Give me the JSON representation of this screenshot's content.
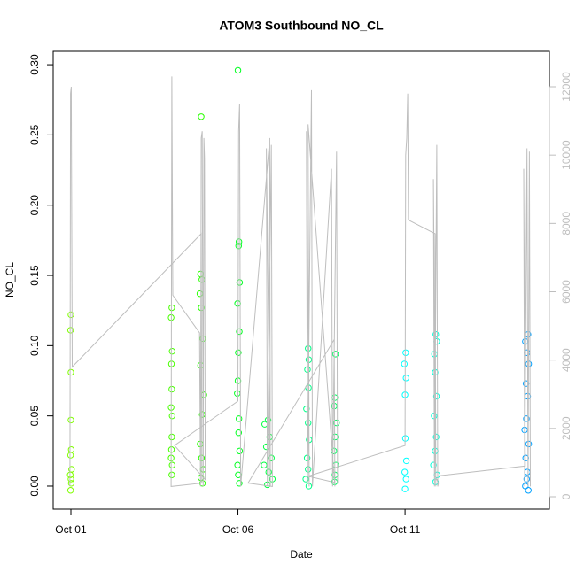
{
  "chart_data": {
    "type": "scatter",
    "title": "ATOM3 Southbound NO_CL",
    "xlabel": "Date",
    "ylabel": "NO_CL",
    "xlim": [
      0.47,
      15.32
    ],
    "xticks": [
      {
        "value": 1,
        "label": "Oct 01"
      },
      {
        "value": 6,
        "label": "Oct 06"
      },
      {
        "value": 11,
        "label": "Oct 11"
      }
    ],
    "ylim": [
      -0.0164,
      0.3095
    ],
    "yticks": [
      {
        "value": 0,
        "label": "0.00"
      },
      {
        "value": 0.05,
        "label": "0.05"
      },
      {
        "value": 0.1,
        "label": "0.10"
      },
      0.15,
      {
        "value": 0.2,
        "label": "0.20"
      },
      0.25,
      {
        "value": 0.3,
        "label": "0.30"
      }
    ],
    "y2lim": [
      -363,
      13037
    ],
    "y2ticks": [
      0,
      2000,
      4000,
      6000,
      8000,
      10000,
      12000
    ],
    "y2_color": "#bebebe",
    "series": [
      {
        "type": "scatter",
        "x": [
          1.0,
          0.99,
          1.0,
          1.0,
          1.01,
          0.99,
          1.02,
          0.98,
          1.0,
          1.01,
          0.99,
          4.02,
          4.0,
          4.03,
          4.01,
          4.02,
          4.0,
          4.03,
          4.02,
          4.01,
          4.0,
          4.03,
          4.02,
          4.9,
          4.88,
          4.92,
          4.86,
          4.9,
          4.95,
          4.88,
          4.98,
          4.93,
          4.87,
          4.91,
          4.96,
          4.89,
          4.94,
          6.0,
          6.03,
          6.02,
          6.05,
          5.99,
          6.04,
          6.01,
          6.0,
          5.98,
          6.03,
          6.02,
          6.05,
          5.99,
          6.01,
          6.04,
          6.9,
          6.8,
          6.95,
          6.85,
          7.0,
          6.78,
          6.92,
          7.03,
          6.88,
          8.1,
          8.12,
          8.08,
          8.11,
          8.05,
          8.1,
          8.13,
          8.07,
          8.1,
          8.03,
          8.12,
          8.92,
          8.9,
          8.88,
          8.95,
          8.91,
          8.87,
          8.93,
          8.9,
          8.89,
          11.02,
          10.98,
          11.03,
          11.0,
          11.01,
          11.04,
          10.99,
          11.03,
          11.0,
          11.92,
          11.95,
          11.88,
          11.9,
          11.94,
          11.87,
          11.93,
          11.9,
          11.85,
          11.96,
          11.91,
          14.68,
          14.6,
          14.65,
          14.7,
          14.62,
          14.67,
          14.63,
          14.58,
          14.7,
          14.61,
          14.66,
          14.64,
          14.6,
          14.69
        ],
        "values": [
          0.122,
          0.111,
          0.081,
          0.047,
          0.026,
          0.022,
          0.012,
          0.008,
          0.005,
          0.002,
          -0.003,
          0.127,
          0.12,
          0.096,
          0.087,
          0.069,
          0.056,
          0.05,
          0.035,
          0.026,
          0.02,
          0.015,
          0.008,
          0.263,
          0.151,
          0.147,
          0.137,
          0.127,
          0.105,
          0.086,
          0.065,
          0.051,
          0.03,
          0.02,
          0.012,
          0.006,
          0.002,
          0.296,
          0.174,
          0.171,
          0.145,
          0.13,
          0.11,
          0.095,
          0.075,
          0.066,
          0.048,
          0.038,
          0.025,
          0.015,
          0.008,
          0.002,
          0.047,
          0.044,
          0.035,
          0.028,
          0.02,
          0.015,
          0.01,
          0.005,
          0.001,
          0.098,
          0.09,
          0.083,
          0.07,
          0.055,
          0.045,
          0.033,
          0.02,
          0.012,
          0.005,
          0.0,
          0.094,
          0.063,
          0.057,
          0.045,
          0.035,
          0.025,
          0.015,
          0.008,
          0.003,
          0.095,
          0.087,
          0.077,
          0.065,
          0.034,
          0.018,
          0.01,
          0.005,
          -0.002,
          0.108,
          0.103,
          0.094,
          0.081,
          0.064,
          0.05,
          0.035,
          0.025,
          0.015,
          0.008,
          0.003,
          0.108,
          0.103,
          0.095,
          0.087,
          0.073,
          0.064,
          0.048,
          0.04,
          0.03,
          0.02,
          0.01,
          0.005,
          0.0,
          -0.003
        ],
        "colors": [
          "#80ff00",
          "#80ff00",
          "#80ff00",
          "#80ff00",
          "#80ff00",
          "#80ff00",
          "#80ff00",
          "#80ff00",
          "#80ff00",
          "#80ff00",
          "#80ff00",
          "#48ff00",
          "#48ff00",
          "#48ff00",
          "#48ff00",
          "#48ff00",
          "#48ff00",
          "#48ff00",
          "#48ff00",
          "#48ff00",
          "#48ff00",
          "#48ff00",
          "#48ff00",
          "#28ff00",
          "#28ff00",
          "#28ff00",
          "#28ff00",
          "#28ff00",
          "#28ff00",
          "#28ff00",
          "#28ff00",
          "#28ff00",
          "#28ff00",
          "#28ff00",
          "#28ff00",
          "#28ff00",
          "#28ff00",
          "#00ff20",
          "#00ff20",
          "#00ff20",
          "#00ff20",
          "#00ff20",
          "#00ff20",
          "#00ff20",
          "#00ff20",
          "#00ff20",
          "#00ff20",
          "#00ff20",
          "#00ff20",
          "#00ff20",
          "#00ff20",
          "#00ff20",
          "#00ff40",
          "#00ff40",
          "#00ff40",
          "#00ff40",
          "#00ff40",
          "#00ff40",
          "#00ff40",
          "#00ff40",
          "#00ff40",
          "#00ff88",
          "#00ff88",
          "#00ff88",
          "#00ff88",
          "#00ff88",
          "#00ff88",
          "#00ff88",
          "#00ff88",
          "#00ff88",
          "#00ff88",
          "#00ff88",
          "#00ff60",
          "#00ff60",
          "#00ff60",
          "#00ff60",
          "#00ff60",
          "#00ff60",
          "#00ff60",
          "#00ff60",
          "#00ff60",
          "#00ffff",
          "#00ffff",
          "#00ffff",
          "#00ffff",
          "#00ffff",
          "#00ffff",
          "#00ffff",
          "#00ffff",
          "#00ffff",
          "#00ffd8",
          "#00ffd8",
          "#00ffd8",
          "#00ffd8",
          "#00ffd8",
          "#00ffd8",
          "#00ffd8",
          "#00ffd8",
          "#00ffd8",
          "#00ffd8",
          "#00ffd8",
          "#00a0ff",
          "#00a0ff",
          "#00a0ff",
          "#00a0ff",
          "#00a0ff",
          "#00a0ff",
          "#00a0ff",
          "#00a0ff",
          "#00a0ff",
          "#00a0ff",
          "#00a0ff",
          "#00a0ff",
          "#00a0ff",
          "#00a0ff"
        ]
      },
      {
        "type": "line",
        "axis": "y2",
        "color": "#bebebe",
        "x": [
          0.97,
          0.99,
          1.01,
          1.04,
          4.9,
          4.92,
          4.0,
          4.02,
          4.05,
          4.85,
          4.88,
          4.9,
          4.93,
          4.96,
          4.98,
          5.0,
          5.02,
          4.1,
          6.0,
          6.02,
          6.05,
          6.08,
          6.95,
          6.97,
          6.85,
          6.88,
          7.0,
          7.03,
          6.3,
          8.88,
          8.9,
          8.1,
          8.13,
          8.05,
          8.08,
          8.2,
          8.23,
          8.8,
          8.83,
          8.95,
          8.98,
          8.1,
          11.0,
          11.02,
          11.05,
          11.08,
          11.1,
          11.9,
          11.92,
          11.85,
          11.88,
          11.95,
          11.98,
          12.0,
          11.9,
          14.6,
          14.55,
          14.58,
          14.65,
          14.68,
          14.72,
          14.75
        ],
        "values": [
          300,
          11800,
          12000,
          3800,
          7700,
          400,
          300,
          12300,
          5900,
          4800,
          300,
          10500,
          10700,
          300,
          10500,
          9900,
          500,
          1500,
          2800,
          10700,
          11500,
          300,
          10500,
          300,
          10200,
          300,
          10300,
          300,
          400,
          4600,
          300,
          10900,
          300,
          10700,
          400,
          11900,
          300,
          9600,
          300,
          10100,
          400,
          600,
          1500,
          10000,
          10500,
          11800,
          8100,
          7700,
          300,
          9300,
          300,
          10300,
          300,
          400,
          600,
          900,
          9600,
          300,
          10200,
          300,
          10100,
          300
        ]
      }
    ]
  }
}
